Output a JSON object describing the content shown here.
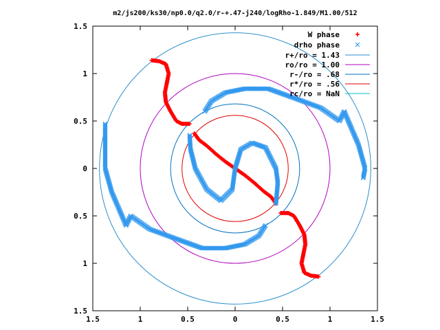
{
  "chart_data": {
    "type": "scatter",
    "title": "m2/js200/ks30/np0.0/q2.0/r-+.47-j240/logRho-1.849/M1.00/512",
    "xlim": [
      -1.5,
      1.5
    ],
    "ylim": [
      -1.5,
      1.5
    ],
    "x_tick_labels": [
      {
        "value": -1.5,
        "label": "1.5"
      },
      {
        "value": -1.0,
        "label": "1"
      },
      {
        "value": -0.5,
        "label": "0.5"
      },
      {
        "value": 0.0,
        "label": "0"
      },
      {
        "value": 0.5,
        "label": "0.5"
      },
      {
        "value": 1.0,
        "label": "1"
      },
      {
        "value": 1.5,
        "label": "1.5"
      }
    ],
    "y_tick_labels": [
      {
        "value": 1.5,
        "label": "1.5"
      },
      {
        "value": 1.0,
        "label": "1"
      },
      {
        "value": 0.5,
        "label": "0.5"
      },
      {
        "value": 0.0,
        "label": "0"
      },
      {
        "value": -0.5,
        "label": "0.5"
      },
      {
        "value": -1.0,
        "label": "1"
      },
      {
        "value": -1.5,
        "label": "1.5"
      }
    ],
    "grid": false,
    "legend_position": "top-right",
    "circles": [
      {
        "name": "r+/ro = 1.43",
        "r": 1.43,
        "color": "#2a8fc9"
      },
      {
        "name": "ro/ro = 1.00",
        "r": 1.0,
        "color": "#b000c0"
      },
      {
        "name": "r-/ro = .68",
        "r": 0.68,
        "color": "#0070c0"
      },
      {
        "name": "r*/ro = .56",
        "r": 0.56,
        "color": "#e00000"
      },
      {
        "name": "rc/ro = NaN",
        "r": null,
        "color": "#00c0c0"
      }
    ],
    "series": [
      {
        "name": "W phase",
        "marker": "+",
        "color": "#ff0000",
        "branches": [
          [
            [
              -0.43,
              0.37
            ],
            [
              -0.38,
              0.3
            ],
            [
              -0.3,
              0.24
            ],
            [
              -0.2,
              0.15
            ],
            [
              -0.1,
              0.07
            ],
            [
              0.0,
              0.0
            ],
            [
              0.1,
              -0.07
            ],
            [
              0.2,
              -0.15
            ],
            [
              0.3,
              -0.24
            ],
            [
              0.38,
              -0.3
            ],
            [
              0.43,
              -0.37
            ]
          ],
          [
            [
              -0.88,
              1.14
            ],
            [
              -0.8,
              1.13
            ],
            [
              -0.73,
              1.1
            ],
            [
              -0.7,
              1.0
            ],
            [
              -0.72,
              0.9
            ],
            [
              -0.74,
              0.8
            ],
            [
              -0.73,
              0.7
            ],
            [
              -0.68,
              0.6
            ],
            [
              -0.62,
              0.5
            ],
            [
              -0.56,
              0.47
            ],
            [
              -0.48,
              0.47
            ]
          ],
          [
            [
              0.48,
              -0.47
            ],
            [
              0.56,
              -0.47
            ],
            [
              0.62,
              -0.5
            ],
            [
              0.68,
              -0.6
            ],
            [
              0.73,
              -0.7
            ],
            [
              0.74,
              -0.8
            ],
            [
              0.72,
              -0.9
            ],
            [
              0.7,
              -1.0
            ],
            [
              0.73,
              -1.1
            ],
            [
              0.8,
              -1.13
            ],
            [
              0.88,
              -1.14
            ]
          ]
        ]
      },
      {
        "name": "drho phase",
        "marker": "x",
        "color": "#3399ee",
        "branches": [
          [
            [
              -0.48,
              0.35
            ],
            [
              -0.47,
              0.2
            ],
            [
              -0.42,
              0.0
            ],
            [
              -0.3,
              -0.22
            ],
            [
              -0.15,
              -0.34
            ],
            [
              -0.03,
              -0.22
            ],
            [
              0.0,
              0.0
            ],
            [
              0.06,
              0.2
            ],
            [
              0.18,
              0.27
            ],
            [
              0.32,
              0.22
            ],
            [
              0.43,
              0.0
            ],
            [
              0.45,
              -0.15
            ],
            [
              0.43,
              -0.37
            ]
          ],
          [
            [
              -0.32,
              0.6
            ],
            [
              -0.25,
              0.71
            ],
            [
              -0.1,
              0.8
            ],
            [
              0.1,
              0.84
            ],
            [
              0.35,
              0.84
            ],
            [
              0.6,
              0.75
            ],
            [
              0.9,
              0.64
            ],
            [
              1.1,
              0.5
            ],
            [
              1.15,
              0.6
            ],
            [
              1.3,
              0.25
            ],
            [
              1.37,
              0.0
            ],
            [
              1.35,
              -0.1
            ]
          ],
          [
            [
              0.32,
              -0.6
            ],
            [
              0.25,
              -0.71
            ],
            [
              0.1,
              -0.8
            ],
            [
              -0.1,
              -0.84
            ],
            [
              -0.35,
              -0.84
            ],
            [
              -0.6,
              -0.75
            ],
            [
              -0.9,
              -0.64
            ],
            [
              -1.1,
              -0.5
            ],
            [
              -1.15,
              -0.6
            ],
            [
              -1.3,
              -0.25
            ],
            [
              -1.37,
              0.0
            ],
            [
              -1.37,
              0.47
            ]
          ]
        ]
      }
    ]
  }
}
